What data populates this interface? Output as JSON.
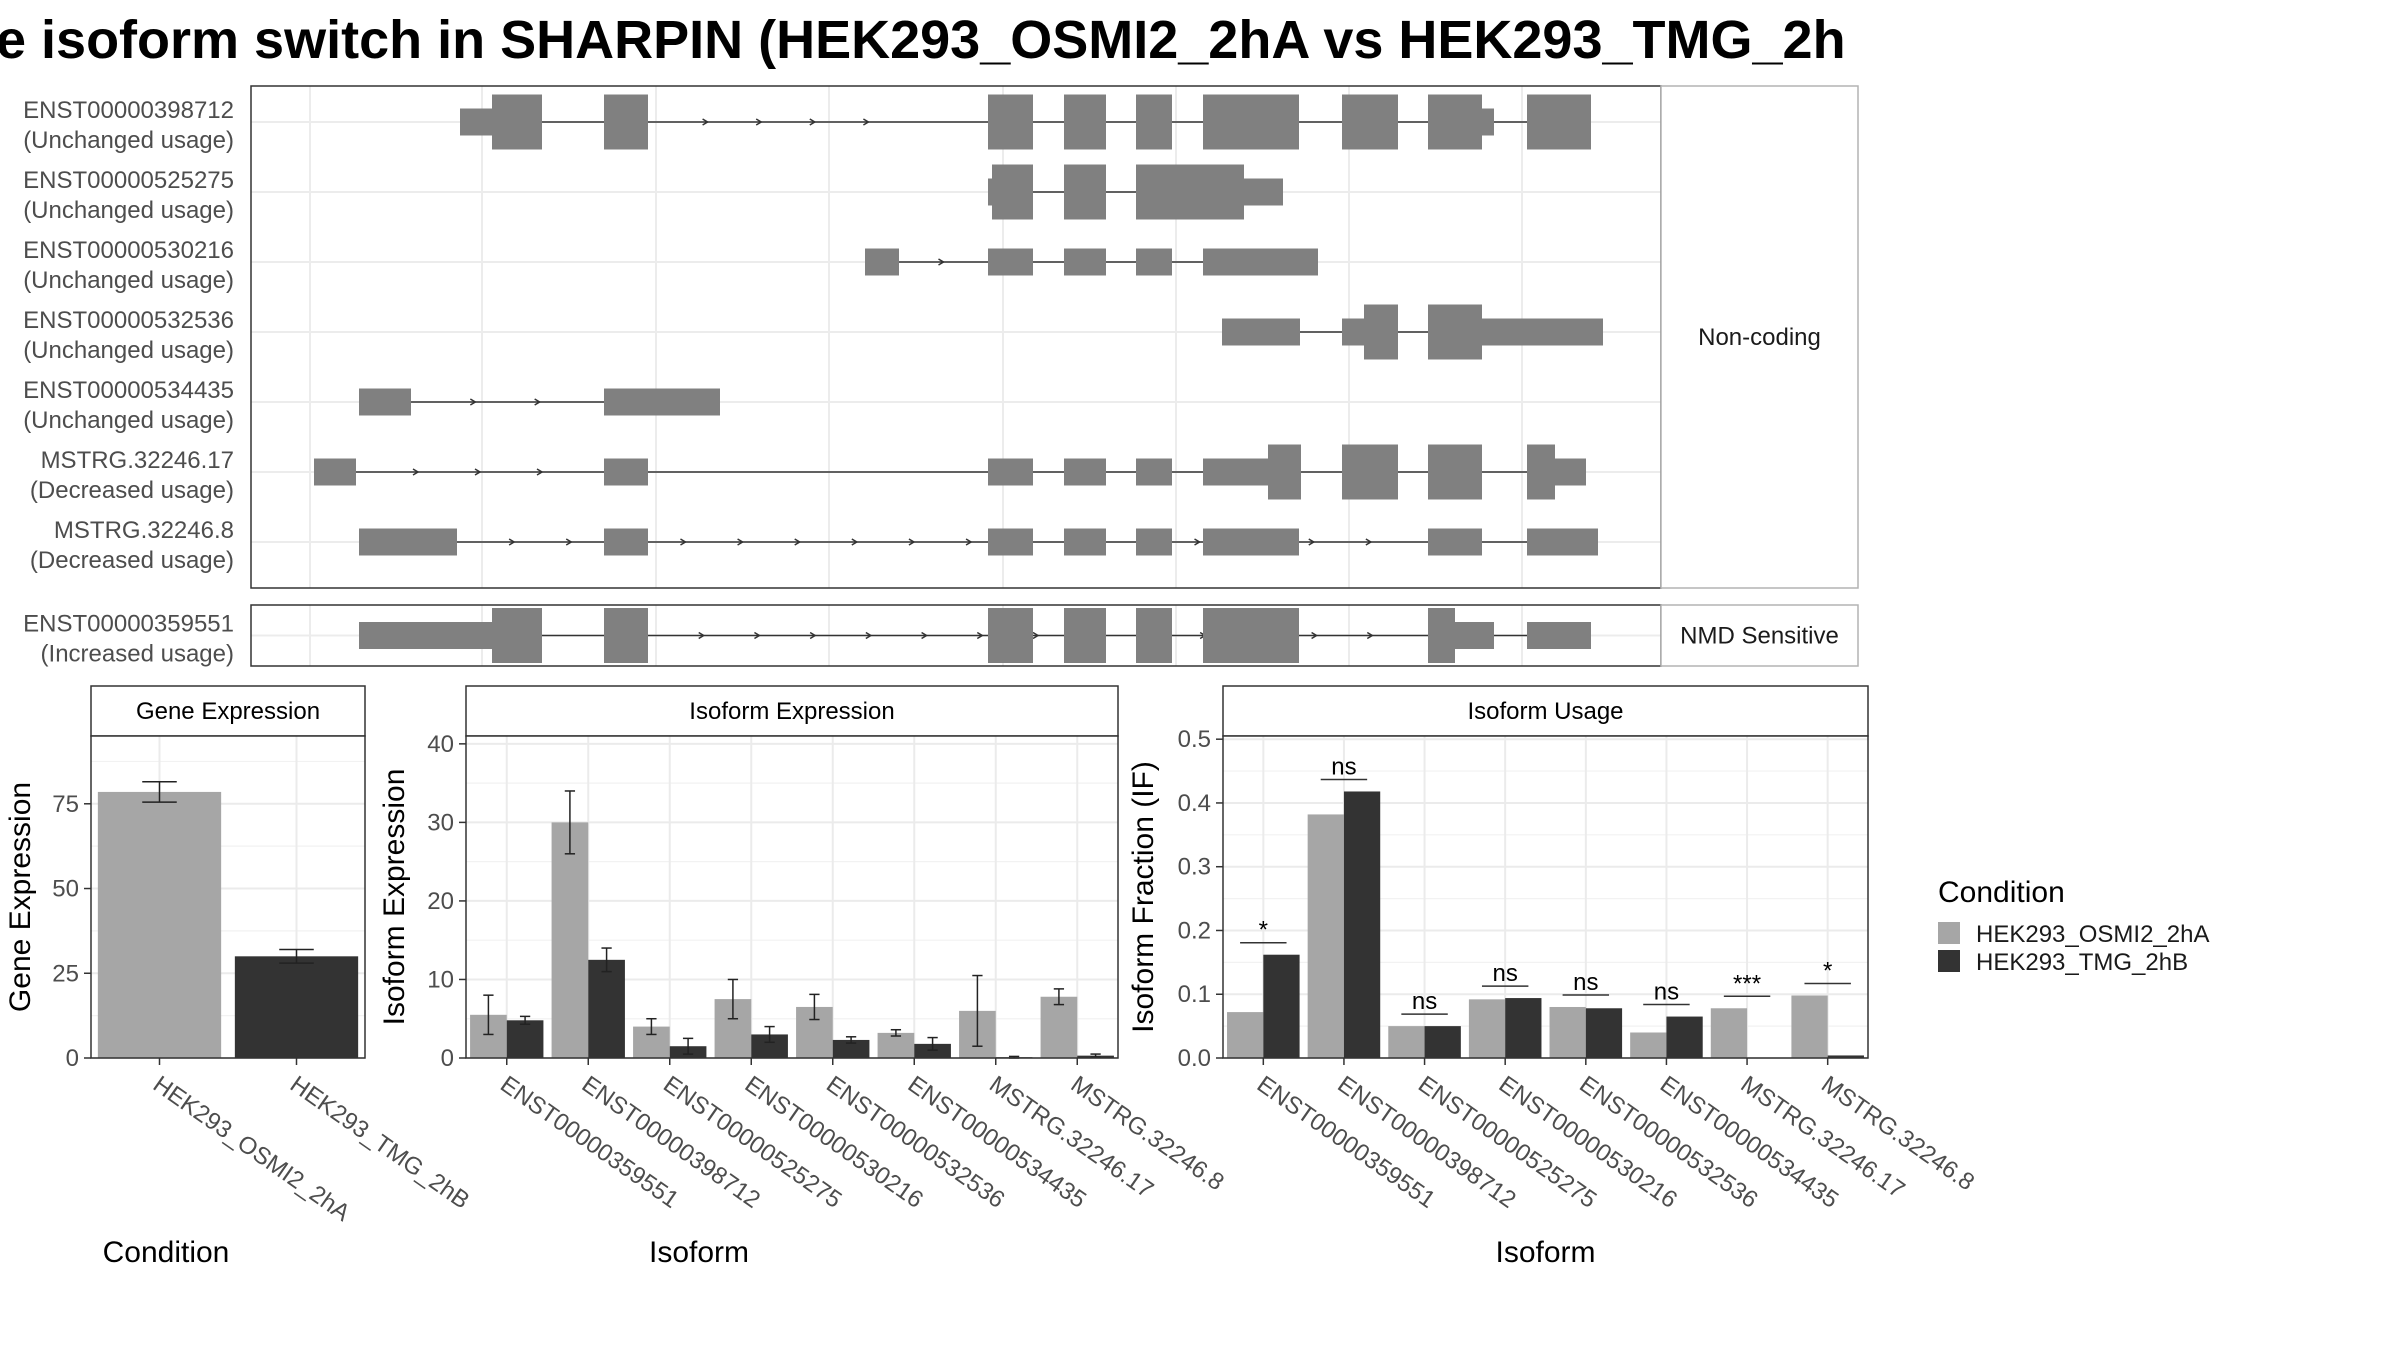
{
  "title": "e isoform switch in SHARPIN (HEK293_OSMI2_2hA vs HEK293_TMG_2h",
  "colors": {
    "exon": "#808080",
    "cond1": "#a6a6a6",
    "cond2": "#333333"
  },
  "chart_data": [
    {
      "type": "gene-structure",
      "panels": [
        {
          "label": "Non-coding",
          "tracks": [
            {
              "id": "ENST00000398712",
              "usage": "(Unchanged usage)"
            },
            {
              "id": "ENST00000525275",
              "usage": "(Unchanged usage)"
            },
            {
              "id": "ENST00000530216",
              "usage": "(Unchanged usage)"
            },
            {
              "id": "ENST00000532536",
              "usage": "(Unchanged usage)"
            },
            {
              "id": "ENST00000534435",
              "usage": "(Unchanged usage)"
            },
            {
              "id": "MSTRG.32246.17",
              "usage": "(Decreased usage)"
            },
            {
              "id": "MSTRG.32246.8",
              "usage": "(Decreased usage)"
            }
          ]
        },
        {
          "label": "NMD Sensitive",
          "tracks": [
            {
              "id": "ENST00000359551",
              "usage": "(Increased usage)"
            }
          ]
        }
      ]
    },
    {
      "type": "bar",
      "title": "Gene Expression",
      "xlabel": "Condition",
      "ylabel": "Gene Expression",
      "ylim": [
        0,
        95
      ],
      "yticks": [
        0,
        25,
        50,
        75
      ],
      "categories": [
        "HEK293_OSMI2_2hA",
        "HEK293_TMG_2hB"
      ],
      "values": [
        78.5,
        30
      ],
      "errors": [
        3,
        2
      ],
      "grid": true
    },
    {
      "type": "bar",
      "title": "Isoform Expression",
      "xlabel": "Isoform",
      "ylabel": "Isoform Expression",
      "ylim": [
        0,
        41
      ],
      "yticks": [
        0,
        10,
        20,
        30,
        40
      ],
      "categories": [
        "ENST00000359551",
        "ENST00000398712",
        "ENST00000525275",
        "ENST00000530216",
        "ENST00000532536",
        "ENST00000534435",
        "MSTRG.32246.17",
        "MSTRG.32246.8"
      ],
      "series": [
        {
          "name": "HEK293_OSMI2_2hA",
          "values": [
            5.5,
            30,
            4,
            7.5,
            6.5,
            3.2,
            6,
            7.8
          ],
          "errors": [
            2.5,
            4,
            1,
            2.5,
            1.6,
            0.4,
            4.5,
            1
          ]
        },
        {
          "name": "HEK293_TMG_2hB",
          "values": [
            4.8,
            12.5,
            1.5,
            3,
            2.3,
            1.8,
            0.1,
            0.3
          ],
          "errors": [
            0.5,
            1.5,
            1,
            1,
            0.4,
            0.8,
            0.1,
            0.2
          ]
        }
      ],
      "grid": true
    },
    {
      "type": "bar",
      "title": "Isoform Usage",
      "xlabel": "Isoform",
      "ylabel": "Isoform Fraction (IF)",
      "ylim": [
        0,
        0.505
      ],
      "yticks": [
        0.0,
        0.1,
        0.2,
        0.3,
        0.4,
        0.5
      ],
      "categories": [
        "ENST00000359551",
        "ENST00000398712",
        "ENST00000525275",
        "ENST00000530216",
        "ENST00000532536",
        "ENST00000534435",
        "MSTRG.32246.17",
        "MSTRG.32246.8"
      ],
      "series": [
        {
          "name": "HEK293_OSMI2_2hA",
          "values": [
            0.072,
            0.382,
            0.05,
            0.092,
            0.08,
            0.04,
            0.078,
            0.098
          ]
        },
        {
          "name": "HEK293_TMG_2hB",
          "values": [
            0.162,
            0.418,
            0.05,
            0.094,
            0.078,
            0.065,
            0.0,
            0.004
          ]
        }
      ],
      "significance": [
        "*",
        "ns",
        "ns",
        "ns",
        "ns",
        "ns",
        "***",
        "*"
      ],
      "grid": true
    }
  ],
  "legend": {
    "title": "Condition",
    "items": [
      "HEK293_OSMI2_2hA",
      "HEK293_TMG_2hB"
    ],
    "position": "right"
  }
}
